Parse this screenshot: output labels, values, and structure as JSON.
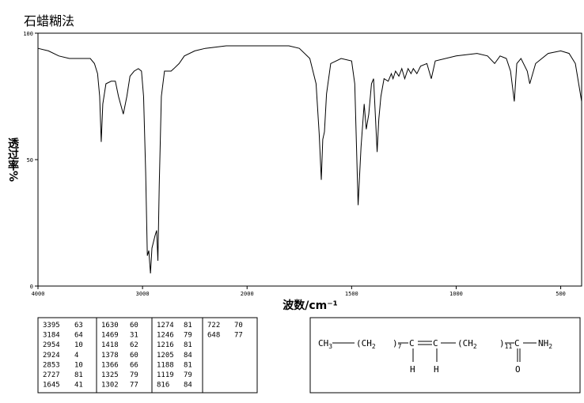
{
  "title": "石蜡糊法",
  "chart_data": {
    "type": "line",
    "x_label": "波数/cm⁻¹",
    "y_label": "透过率%",
    "xlim": [
      4000,
      400
    ],
    "ylim": [
      0,
      100
    ],
    "xticks": [
      4000,
      3000,
      2000,
      1500,
      1000,
      500
    ],
    "yticks": [
      0,
      50,
      100
    ],
    "x": [
      4000,
      3900,
      3800,
      3700,
      3600,
      3500,
      3460,
      3430,
      3410,
      3395,
      3380,
      3350,
      3300,
      3260,
      3230,
      3184,
      3150,
      3120,
      3080,
      3040,
      3010,
      2990,
      2970,
      2954,
      2940,
      2924,
      2910,
      2880,
      2865,
      2853,
      2840,
      2820,
      2790,
      2727,
      2700,
      2650,
      2600,
      2500,
      2400,
      2200,
      2000,
      1900,
      1800,
      1750,
      1700,
      1670,
      1655,
      1645,
      1638,
      1630,
      1620,
      1600,
      1550,
      1500,
      1485,
      1469,
      1455,
      1440,
      1430,
      1418,
      1405,
      1395,
      1378,
      1370,
      1360,
      1345,
      1325,
      1310,
      1302,
      1290,
      1274,
      1260,
      1246,
      1230,
      1216,
      1205,
      1188,
      1170,
      1140,
      1119,
      1100,
      1000,
      900,
      850,
      816,
      790,
      760,
      740,
      722,
      710,
      690,
      660,
      648,
      620,
      560,
      500,
      460,
      430,
      400
    ],
    "series": [
      {
        "name": "透过率",
        "color": "#000000",
        "values": [
          94,
          93,
          91,
          90,
          90,
          90,
          88,
          84,
          75,
          57,
          72,
          80,
          81,
          81,
          75,
          68,
          75,
          83,
          85,
          86,
          85,
          75,
          45,
          12,
          14,
          5,
          15,
          20,
          22,
          10,
          40,
          75,
          85,
          85,
          86,
          88,
          91,
          93,
          94,
          95,
          95,
          95,
          95,
          94,
          90,
          80,
          60,
          42,
          58,
          61,
          76,
          88,
          90,
          89,
          80,
          32,
          55,
          72,
          62,
          68,
          80,
          82,
          53,
          66,
          75,
          82,
          81,
          84,
          82,
          85,
          83,
          86,
          82,
          86,
          84,
          86,
          84,
          87,
          88,
          82,
          89,
          91,
          92,
          91,
          88,
          91,
          90,
          85,
          73,
          88,
          90,
          85,
          80,
          88,
          92,
          93,
          92,
          88,
          73
        ]
      }
    ]
  },
  "peak_table": [
    [
      [
        3395,
        63
      ],
      [
        3184,
        64
      ],
      [
        2954,
        10
      ],
      [
        2924,
        4
      ],
      [
        2853,
        10
      ],
      [
        2727,
        81
      ],
      [
        1645,
        41
      ]
    ],
    [
      [
        1630,
        60
      ],
      [
        1469,
        31
      ],
      [
        1418,
        62
      ],
      [
        1378,
        60
      ],
      [
        1366,
        66
      ],
      [
        1325,
        79
      ],
      [
        1302,
        77
      ]
    ],
    [
      [
        1274,
        81
      ],
      [
        1246,
        79
      ],
      [
        1216,
        81
      ],
      [
        1205,
        84
      ],
      [
        1188,
        81
      ],
      [
        1119,
        79
      ],
      [
        816,
        84
      ]
    ],
    [
      [
        722,
        70
      ],
      [
        648,
        77
      ]
    ]
  ],
  "structure": {
    "groups": [
      {
        "t": "CH",
        "s": "3"
      },
      {
        "t": "(CH",
        "s": "2"
      },
      {
        "t": ")",
        "s": "7"
      },
      {
        "t": "C"
      },
      {
        "t": "C"
      },
      {
        "t": "(CH",
        "s": "2"
      },
      {
        "t": ")",
        "s": "11"
      },
      {
        "t": "C"
      },
      {
        "t": "NH",
        "s": "2"
      }
    ],
    "below": [
      "H",
      "H",
      "O"
    ]
  }
}
